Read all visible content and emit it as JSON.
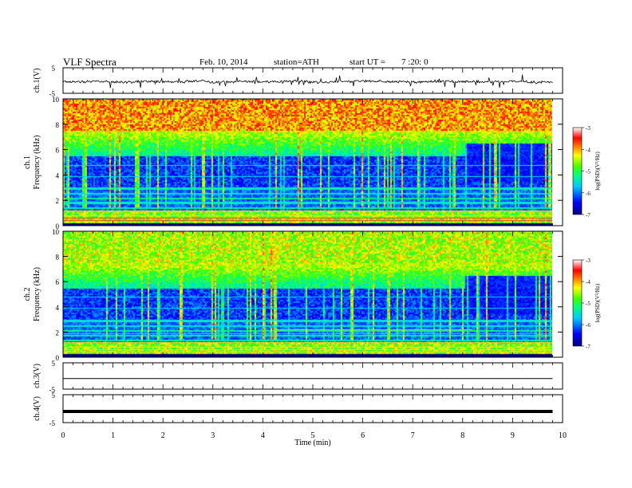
{
  "header": {
    "title": "VLF Spectra",
    "date": "Feb. 10, 2014",
    "station": "station=ATH",
    "start_label": "start UT =",
    "start_time": "7 :20: 0"
  },
  "chart_data": [
    {
      "type": "line",
      "panel": "ch1-waveform",
      "ylabel": "ch.1(V)",
      "ylim": [
        -5,
        5
      ],
      "yticks": [
        "5",
        "-5"
      ],
      "x_range_min": [
        0,
        9.8
      ],
      "series": [
        {
          "values": [
            -0.5,
            -0.3,
            -0.6,
            -0.4,
            -0.5,
            -0.2,
            -0.6,
            -0.4,
            -0.5,
            -0.3,
            -0.7,
            -0.4,
            -0.2,
            -0.5,
            -0.6,
            -0.3,
            -0.4,
            -0.5,
            -0.4,
            -0.6
          ]
        }
      ],
      "colors": {
        "line": "#000000"
      }
    },
    {
      "type": "heatmap",
      "panel": "ch1-spectrogram",
      "ylabel_top": "ch.1",
      "ylabel": "Frequency (kHz)",
      "ylim": [
        0,
        10
      ],
      "yticks": [
        "0",
        "2",
        "4",
        "6",
        "8",
        "10"
      ],
      "colorbar": {
        "label": "log(PSD)(V²/Hz)",
        "ticks": [
          "-3",
          "-4",
          "-5",
          "-6",
          "-7"
        ],
        "range": [
          -7,
          -3
        ]
      },
      "colors": {
        "scale": [
          "#000080",
          "#0000ff",
          "#00ffff",
          "#00ff00",
          "#ffff00",
          "#ff8000",
          "#ff0000",
          "#ffffff"
        ]
      }
    },
    {
      "type": "heatmap",
      "panel": "ch2-spectrogram",
      "ylabel_top": "ch.2",
      "ylabel": "Frequency (kHz)",
      "ylim": [
        0,
        10
      ],
      "yticks": [
        "0",
        "2",
        "4",
        "6",
        "8",
        "10"
      ],
      "colorbar": {
        "label": "log(PSD)(V²/Hz)",
        "ticks": [
          "-3",
          "-4",
          "-5",
          "-6",
          "-7"
        ],
        "range": [
          -7,
          -3
        ]
      }
    },
    {
      "type": "line",
      "panel": "ch3-waveform",
      "ylabel": "ch.3(V)",
      "ylim": [
        -5,
        5
      ],
      "yticks": [
        "5",
        "-5"
      ],
      "series": [
        {
          "values": [
            -1,
            -1
          ]
        }
      ]
    },
    {
      "type": "line",
      "panel": "ch4-waveform",
      "ylabel": "ch.4(V)",
      "ylim": [
        -5,
        5
      ],
      "yticks": [
        "5",
        "-5"
      ],
      "series": [
        {
          "values": [
            -1,
            -1
          ]
        }
      ]
    }
  ],
  "xaxis": {
    "label": "Time (min)",
    "xlim": [
      0,
      10
    ],
    "ticks": [
      "0",
      "1",
      "2",
      "3",
      "4",
      "5",
      "6",
      "7",
      "8",
      "9",
      "10"
    ]
  }
}
